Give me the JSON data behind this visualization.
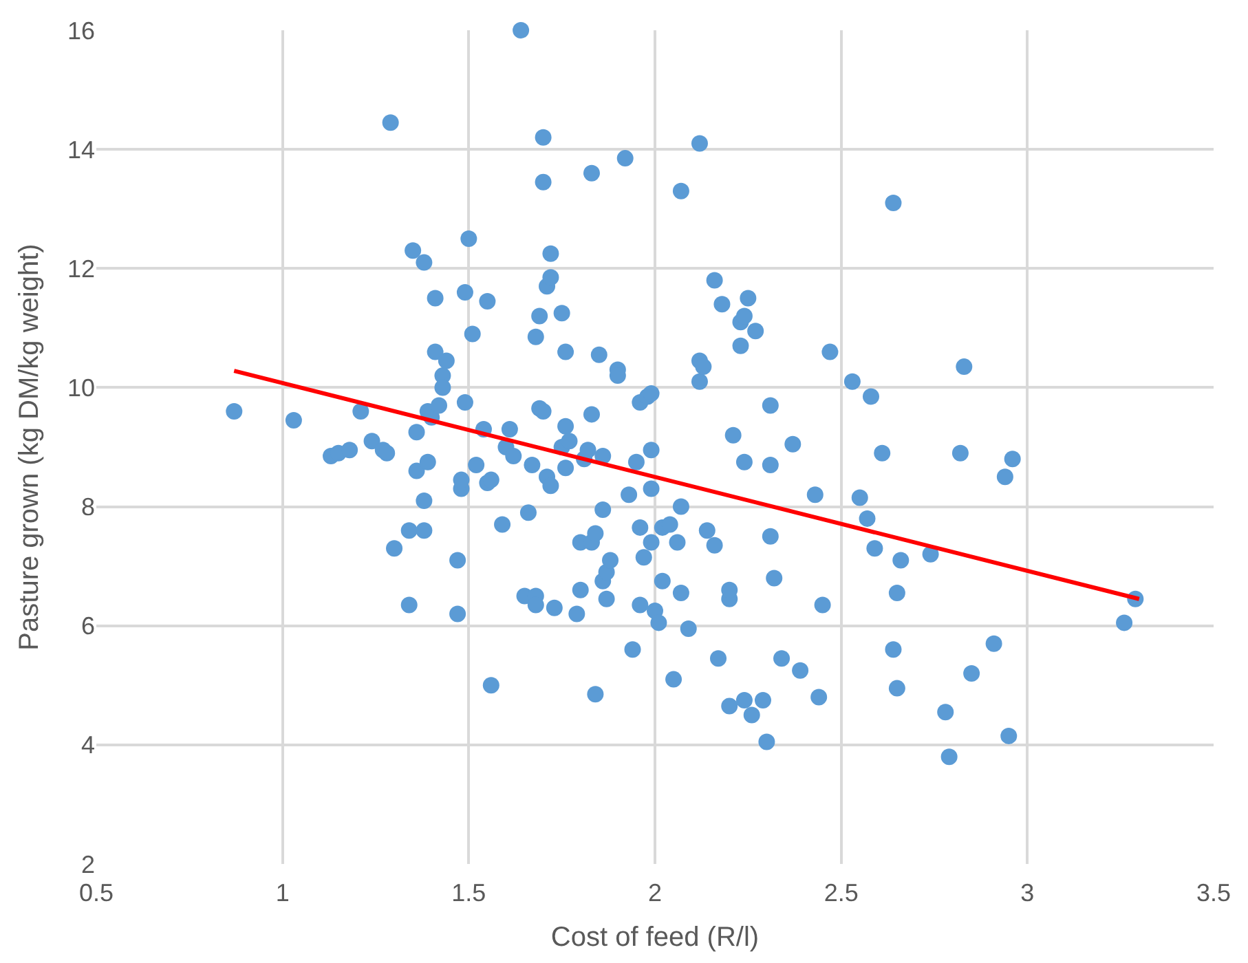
{
  "chart_data": {
    "type": "scatter",
    "xlabel": "Cost of feed (R/l)",
    "ylabel": "Pasture grown (kg DM/kg weight)",
    "xlim": [
      0.5,
      3.5
    ],
    "xticks": [
      0.5,
      1,
      1.5,
      2,
      2.5,
      3,
      3.5
    ],
    "ylim": [
      2,
      16
    ],
    "yticks": [
      2,
      4,
      6,
      8,
      10,
      12,
      14,
      16
    ],
    "grid": true,
    "marker": "circle",
    "series": [
      {
        "color": "#5b9bd5",
        "x": [
          0.87,
          1.03,
          1.13,
          1.15,
          1.18,
          1.21,
          1.24,
          1.27,
          1.28,
          1.29,
          1.3,
          1.34,
          1.34,
          1.35,
          1.36,
          1.36,
          1.38,
          1.38,
          1.38,
          1.39,
          1.39,
          1.4,
          1.41,
          1.41,
          1.42,
          1.43,
          1.43,
          1.44,
          1.47,
          1.47,
          1.48,
          1.48,
          1.49,
          1.49,
          1.5,
          1.51,
          1.52,
          1.54,
          1.55,
          1.55,
          1.56,
          1.56,
          1.59,
          1.6,
          1.61,
          1.62,
          1.64,
          1.65,
          1.66,
          1.67,
          1.68,
          1.68,
          1.68,
          1.69,
          1.69,
          1.7,
          1.7,
          1.7,
          1.71,
          1.71,
          1.72,
          1.72,
          1.72,
          1.73,
          1.75,
          1.75,
          1.76,
          1.76,
          1.76,
          1.77,
          1.79,
          1.8,
          1.8,
          1.81,
          1.82,
          1.83,
          1.83,
          1.83,
          1.84,
          1.84,
          1.85,
          1.86,
          1.86,
          1.86,
          1.87,
          1.87,
          1.88,
          1.9,
          1.9,
          1.92,
          1.93,
          1.94,
          1.95,
          1.96,
          1.96,
          1.96,
          1.97,
          1.98,
          1.99,
          1.99,
          1.99,
          1.99,
          2.0,
          2.01,
          2.02,
          2.02,
          2.04,
          2.05,
          2.06,
          2.07,
          2.07,
          2.07,
          2.09,
          2.12,
          2.12,
          2.12,
          2.13,
          2.14,
          2.16,
          2.16,
          2.17,
          2.18,
          2.2,
          2.2,
          2.2,
          2.21,
          2.23,
          2.23,
          2.24,
          2.24,
          2.24,
          2.25,
          2.26,
          2.27,
          2.29,
          2.3,
          2.31,
          2.31,
          2.31,
          2.32,
          2.34,
          2.37,
          2.39,
          2.43,
          2.44,
          2.45,
          2.47,
          2.53,
          2.55,
          2.57,
          2.58,
          2.59,
          2.61,
          2.64,
          2.64,
          2.65,
          2.65,
          2.66,
          2.74,
          2.78,
          2.79,
          2.82,
          2.83,
          2.85,
          2.91,
          2.94,
          2.95,
          2.96,
          3.26,
          3.29
        ],
        "values": [
          9.6,
          9.45,
          8.85,
          8.9,
          8.95,
          9.6,
          9.1,
          8.95,
          8.9,
          14.45,
          7.3,
          7.6,
          6.35,
          12.3,
          9.25,
          8.6,
          8.1,
          7.6,
          12.1,
          9.6,
          8.75,
          9.5,
          11.5,
          10.6,
          9.7,
          10.2,
          10.0,
          10.45,
          7.1,
          6.2,
          8.3,
          8.45,
          11.6,
          9.75,
          12.5,
          10.9,
          8.7,
          9.3,
          11.45,
          8.4,
          8.45,
          5.0,
          7.7,
          9.0,
          9.3,
          8.85,
          16.0,
          6.5,
          7.9,
          8.7,
          6.5,
          6.35,
          10.85,
          11.2,
          9.65,
          9.6,
          13.45,
          14.2,
          11.7,
          8.5,
          8.35,
          11.85,
          12.25,
          6.3,
          11.25,
          9.0,
          9.35,
          10.6,
          8.65,
          9.1,
          6.2,
          7.4,
          6.6,
          8.8,
          8.95,
          13.6,
          9.55,
          7.4,
          7.55,
          4.85,
          10.55,
          8.85,
          7.95,
          6.75,
          6.9,
          6.45,
          7.1,
          10.3,
          10.2,
          13.85,
          8.2,
          5.6,
          8.75,
          7.65,
          6.35,
          9.75,
          7.15,
          9.85,
          9.9,
          8.95,
          8.3,
          7.4,
          6.25,
          6.05,
          7.65,
          6.75,
          7.7,
          5.1,
          7.4,
          13.3,
          8.0,
          6.55,
          5.95,
          14.1,
          10.45,
          10.1,
          10.35,
          7.6,
          7.35,
          11.8,
          5.45,
          11.4,
          6.45,
          6.6,
          4.65,
          9.2,
          10.7,
          11.1,
          11.2,
          8.75,
          4.75,
          11.5,
          4.5,
          10.95,
          4.75,
          4.05,
          9.7,
          8.7,
          7.5,
          6.8,
          5.45,
          9.05,
          5.25,
          8.2,
          4.8,
          6.35,
          10.6,
          10.1,
          8.15,
          7.8,
          9.85,
          7.3,
          8.9,
          5.6,
          13.1,
          6.55,
          4.95,
          7.1,
          7.2,
          4.55,
          3.8,
          8.9,
          10.35,
          5.2,
          5.7,
          8.5,
          4.15,
          8.8,
          6.05,
          6.45
        ]
      },
      {
        "type": "line",
        "color": "#ff0000",
        "marker": "none",
        "line_style": "solid",
        "x": [
          0.87,
          3.3
        ],
        "values": [
          10.28,
          6.45
        ]
      }
    ]
  }
}
